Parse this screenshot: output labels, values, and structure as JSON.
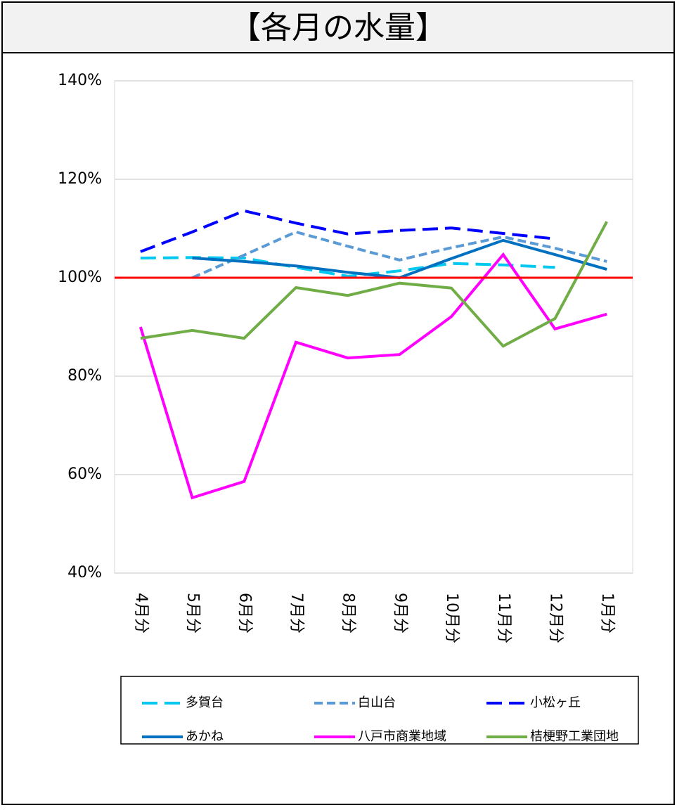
{
  "chart_data": {
    "type": "line",
    "title": "【各月の水量】",
    "categories": [
      "4月分",
      "5月分",
      "6月分",
      "7月分",
      "8月分",
      "9月分",
      "10月分",
      "11月分",
      "12月分",
      "1月分"
    ],
    "series": [
      {
        "name": "多賀台",
        "color": "#00c8f0",
        "style": "dash",
        "values": [
          104,
          104.1,
          104,
          102.1,
          100.3,
          101.4,
          102.9,
          102.6,
          102.1,
          null
        ]
      },
      {
        "name": "白山台",
        "color": "#5b9bd5",
        "style": "dot",
        "values": [
          null,
          100,
          104.6,
          109.3,
          106.4,
          103.6,
          106.1,
          108.3,
          106,
          103.3
        ]
      },
      {
        "name": "小松ヶ丘",
        "color": "#0000ff",
        "style": "dash",
        "values": [
          105.3,
          109.3,
          113.6,
          111.1,
          108.9,
          109.6,
          110.1,
          109,
          107.9,
          null
        ]
      },
      {
        "name": "あかね",
        "color": "#0070c0",
        "style": "solid",
        "values": [
          null,
          104,
          103.3,
          102.4,
          101.1,
          100,
          103.9,
          107.6,
          104.7,
          101.7
        ]
      },
      {
        "name": "八戸市商業地域",
        "color": "#ff00ff",
        "style": "solid",
        "values": [
          90,
          55.3,
          58.6,
          86.9,
          83.7,
          84.4,
          92.1,
          104.7,
          89.6,
          92.6
        ]
      },
      {
        "name": "桔梗野工業団地",
        "color": "#70ad47",
        "style": "solid",
        "values": [
          87.7,
          89.3,
          87.7,
          98,
          96.4,
          98.9,
          97.9,
          86.1,
          91.7,
          111.4
        ]
      }
    ],
    "reference_line": {
      "value": 100,
      "color": "#ff0000"
    },
    "ylim": [
      40,
      140
    ],
    "yticks": [
      {
        "value": 40,
        "label": "40%"
      },
      {
        "value": 60,
        "label": "60%"
      },
      {
        "value": 80,
        "label": "80%"
      },
      {
        "value": 100,
        "label": "100%"
      },
      {
        "value": 120,
        "label": "120%"
      },
      {
        "value": 140,
        "label": "140%"
      }
    ],
    "grid": true,
    "legend": "bottom"
  }
}
